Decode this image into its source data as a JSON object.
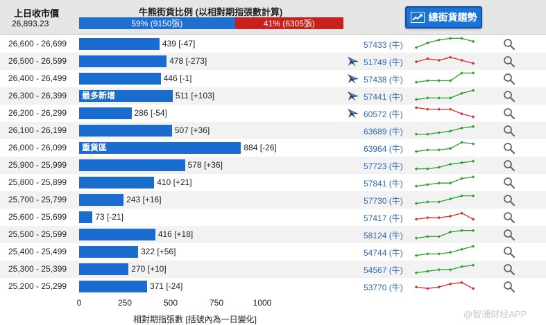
{
  "header": {
    "close_label": "上日收市價",
    "close_value": "26,893.23",
    "ratio_title": "牛熊街貨比例 (以相對期指張數計算)",
    "bull_ratio": 59,
    "bull_label": "59% (9150張)",
    "bear_label": "41% (6305張)",
    "trend_button_label": "總街貨趨勢"
  },
  "colors": {
    "bar": "#1a6dce",
    "bull_segment": "#1f6fd1",
    "bear_segment": "#c8211d",
    "spark_up": "#2aa02a",
    "spark_down": "#d03030",
    "code_link": "#2d6cb5"
  },
  "chart_data": {
    "type": "bar",
    "orientation": "horizontal",
    "xlim": [
      0,
      1000
    ],
    "xticks": [
      "0",
      "250",
      "500",
      "750",
      "1000"
    ],
    "xlabel": "相對期指張數 [括號內為一日變化]",
    "rows": [
      {
        "range": "26,600 - 26,699",
        "value": 439,
        "change": "[-47]",
        "code": "57433 (牛)",
        "bear": false,
        "trend": "up",
        "spark": [
          2,
          5,
          7,
          8,
          8,
          6
        ]
      },
      {
        "range": "26,500 - 26,599",
        "value": 478,
        "change": "[-273]",
        "code": "51749 (牛)",
        "bear": true,
        "trend": "down",
        "spark": [
          4,
          6,
          5,
          7,
          5,
          3
        ]
      },
      {
        "range": "26,400 - 26,499",
        "value": 446,
        "change": "[-1]",
        "code": "57438 (牛)",
        "bear": true,
        "trend": "up",
        "spark": [
          2,
          3,
          3,
          3,
          8,
          8
        ]
      },
      {
        "range": "26,300 - 26,399",
        "value": 511,
        "change": "[+103]",
        "label": "最多新增",
        "code": "57441 (牛)",
        "bear": true,
        "trend": "up",
        "spark": [
          2,
          3,
          3,
          3,
          6,
          8
        ]
      },
      {
        "range": "26,200 - 26,299",
        "value": 286,
        "change": "[-54]",
        "code": "60572 (牛)",
        "bear": true,
        "trend": "down",
        "spark": [
          8,
          7,
          7,
          7,
          4,
          2
        ]
      },
      {
        "range": "26,100 - 26,199",
        "value": 507,
        "change": "[+36]",
        "code": "63689 (牛)",
        "bear": false,
        "trend": "up",
        "spark": [
          2,
          2,
          3,
          4,
          6,
          7
        ]
      },
      {
        "range": "26,000 - 26,099",
        "value": 884,
        "change": "[-26]",
        "label": "重貨區",
        "code": "63964 (牛)",
        "bear": false,
        "trend": "up",
        "spark": [
          2,
          3,
          3,
          4,
          8,
          7
        ]
      },
      {
        "range": "25,900 - 25,999",
        "value": 578,
        "change": "[+36]",
        "code": "57723 (牛)",
        "bear": false,
        "trend": "up",
        "spark": [
          2,
          2,
          3,
          5,
          6,
          7
        ]
      },
      {
        "range": "25,800 - 25,899",
        "value": 410,
        "change": "[+21]",
        "code": "57841 (牛)",
        "bear": false,
        "trend": "up",
        "spark": [
          2,
          3,
          4,
          4,
          7,
          8
        ]
      },
      {
        "range": "25,700 - 25,799",
        "value": 243,
        "change": "[+16]",
        "code": "57730 (牛)",
        "bear": false,
        "trend": "up",
        "spark": [
          2,
          3,
          3,
          5,
          7,
          7
        ]
      },
      {
        "range": "25,600 - 25,699",
        "value": 73,
        "change": "[-21]",
        "code": "57417 (牛)",
        "bear": false,
        "trend": "down",
        "spark": [
          3,
          4,
          4,
          5,
          7,
          3
        ]
      },
      {
        "range": "25,500 - 25,599",
        "value": 416,
        "change": "[+18]",
        "code": "58124 (牛)",
        "bear": false,
        "trend": "up",
        "spark": [
          2,
          3,
          3,
          6,
          7,
          7
        ]
      },
      {
        "range": "25,400 - 25,499",
        "value": 322,
        "change": "[+56]",
        "code": "54744 (牛)",
        "bear": false,
        "trend": "up",
        "spark": [
          2,
          3,
          3,
          4,
          6,
          8
        ]
      },
      {
        "range": "25,300 - 25,399",
        "value": 270,
        "change": "[+10]",
        "code": "54567 (牛)",
        "bear": false,
        "trend": "up",
        "spark": [
          2,
          3,
          4,
          4,
          6,
          7
        ]
      },
      {
        "range": "25,200 - 25,299",
        "value": 371,
        "change": "[-24]",
        "code": "53770 (牛)",
        "bear": false,
        "trend": "down",
        "spark": [
          4,
          3,
          4,
          6,
          7,
          3
        ]
      }
    ]
  },
  "watermark": "@智通财经APP"
}
